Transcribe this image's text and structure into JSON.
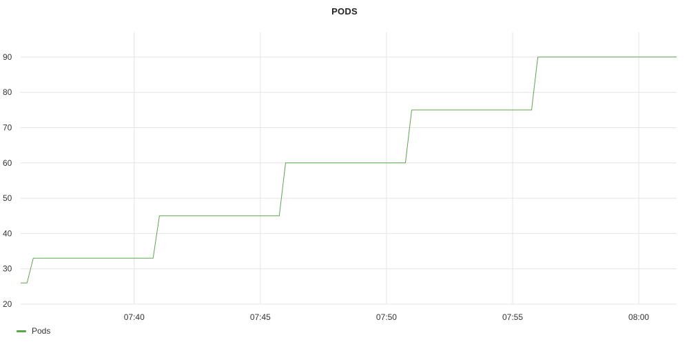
{
  "chart_data": {
    "type": "line",
    "title": "PODS",
    "xlabel": "",
    "ylabel": "",
    "x_range": [
      "07:35:30",
      "08:01:30"
    ],
    "ylim": [
      20,
      97
    ],
    "x_ticks": [
      "07:40",
      "07:45",
      "07:50",
      "07:55",
      "08:00"
    ],
    "y_ticks": [
      20,
      30,
      40,
      50,
      60,
      70,
      80,
      90
    ],
    "grid": true,
    "legend_position": "bottom-left",
    "series": [
      {
        "name": "Pods",
        "color": "#5aa64b",
        "x": [
          "07:35:30",
          "07:35:45",
          "07:36:00",
          "07:40:45",
          "07:41:00",
          "07:45:45",
          "07:46:00",
          "07:50:45",
          "07:51:00",
          "07:55:45",
          "07:56:00",
          "08:01:30"
        ],
        "y": [
          26,
          26,
          33,
          33,
          45,
          45,
          60,
          60,
          75,
          75,
          90,
          90
        ]
      }
    ]
  }
}
